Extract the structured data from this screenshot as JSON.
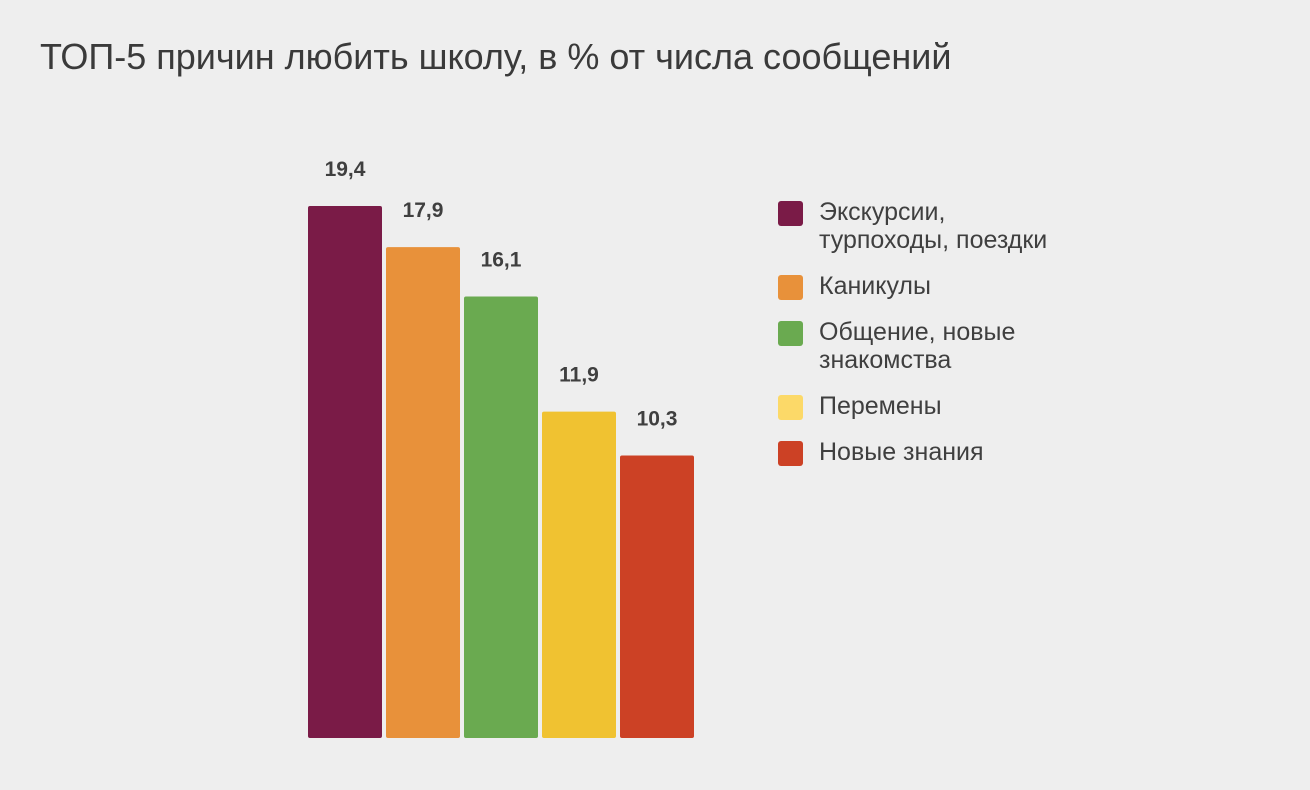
{
  "chart_data": {
    "type": "bar",
    "title": "ТОП-5 причин любить школу, в % от числа сообщений",
    "categories": [
      "Экскурсии, турпоходы, поездки",
      "Каникулы",
      "Общение, новые знакомства",
      "Перемены",
      "Новые знания"
    ],
    "values": [
      19.4,
      17.9,
      16.1,
      11.9,
      10.3
    ],
    "value_labels": [
      "19,4",
      "17,9",
      "16,1",
      "11,9",
      "10,3"
    ],
    "colors": [
      "#7a1b47",
      "#e8913a",
      "#6aaa50",
      "#f0c231",
      "#cc4125"
    ],
    "legend_colors": [
      "#7a1b47",
      "#e8913a",
      "#6aaa50",
      "#fcd968",
      "#cc4125"
    ],
    "legend_labels": [
      "Экскурсии,\nтурпоходы, поездки",
      "Каникулы",
      "Общение, новые\nзнакомства",
      "Перемены",
      "Новые знания"
    ],
    "xlabel": "",
    "ylabel": "",
    "ylim": [
      0,
      19.4
    ],
    "grid": false,
    "legend_position": "right"
  }
}
